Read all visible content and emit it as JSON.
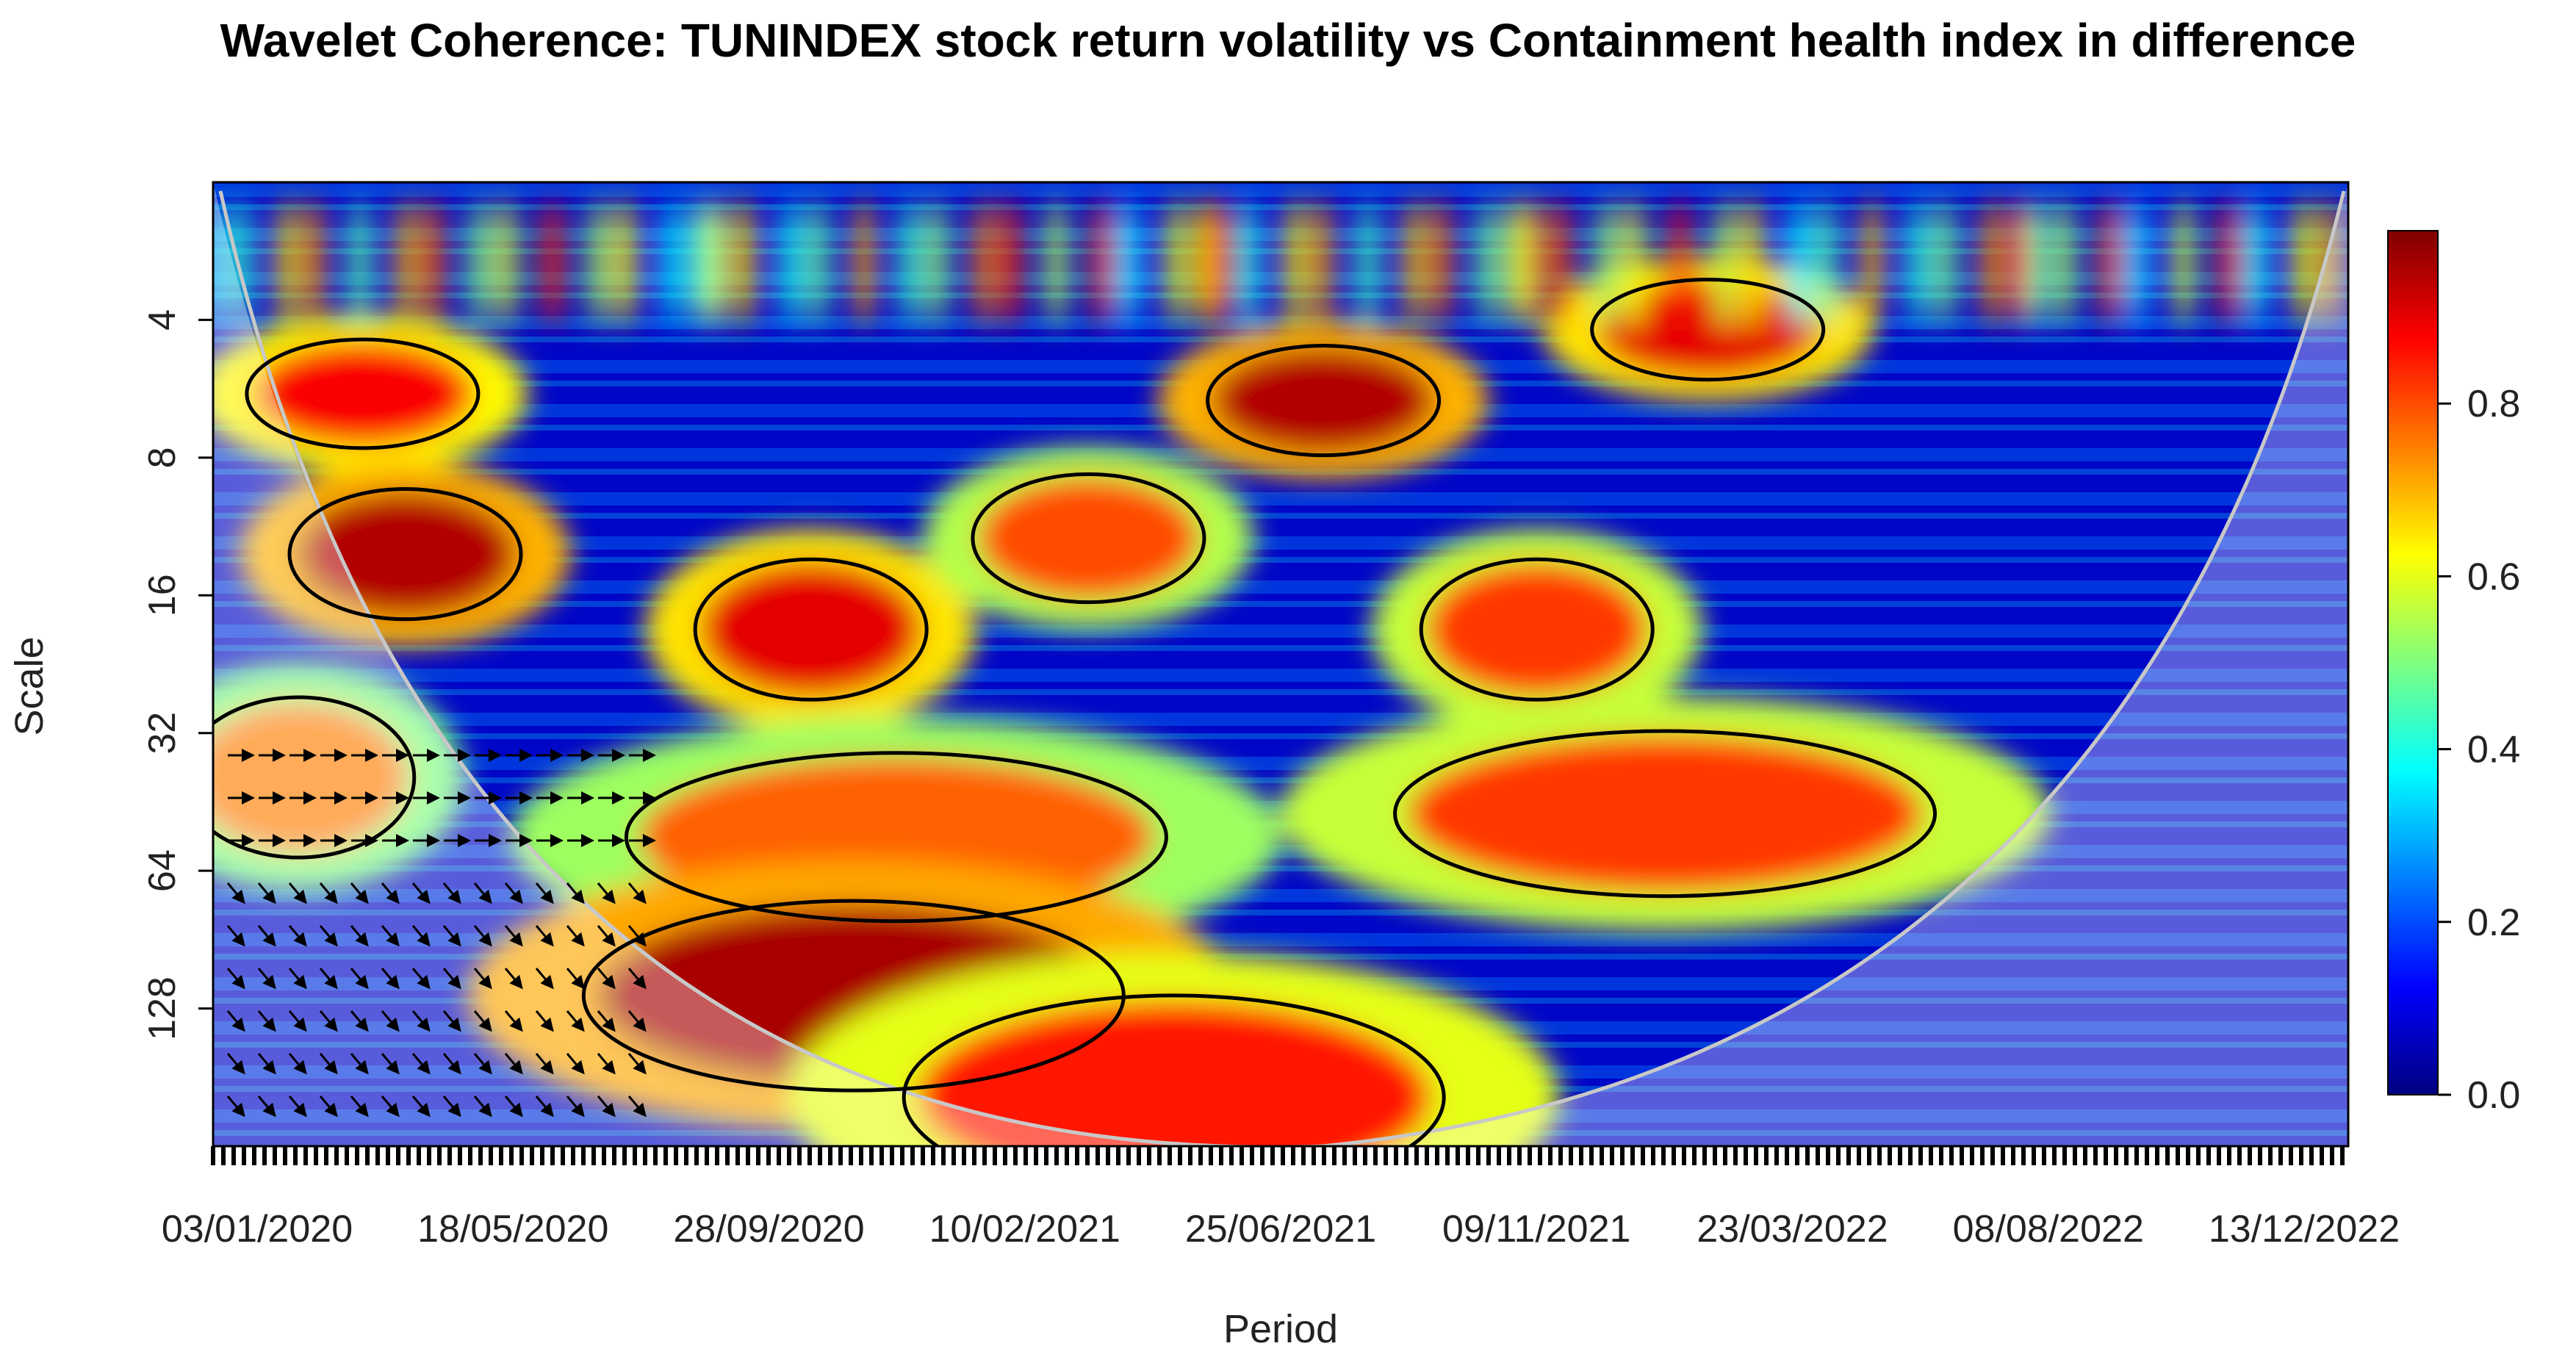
{
  "chart_data": {
    "type": "heatmap",
    "title": "Wavelet Coherence: TUNINDEX stock return volatility vs Containment health index in difference",
    "xlabel": "Period",
    "ylabel": "Scale",
    "x_tick_labels": [
      "03/01/2020",
      "18/05/2020",
      "28/09/2020",
      "10/02/2021",
      "25/06/2021",
      "09/11/2021",
      "23/03/2022",
      "08/08/2022",
      "13/12/2022"
    ],
    "y_tick_labels": [
      "4",
      "8",
      "16",
      "32",
      "64",
      "128"
    ],
    "y_scale": "log2",
    "y_range": [
      2,
      256
    ],
    "colorbar": {
      "ticks": [
        "0.0",
        "0.2",
        "0.4",
        "0.6",
        "0.8"
      ],
      "range": [
        0,
        1
      ],
      "palette": [
        "#00007f",
        "#0000ff",
        "#007fff",
        "#00ffff",
        "#7fff7f",
        "#ffff00",
        "#ff7f00",
        "#ff0000",
        "#7f0000"
      ]
    },
    "regions": [
      {
        "x": 0.07,
        "scale": 5.8,
        "coherence": 0.88
      },
      {
        "x": 0.09,
        "scale": 13,
        "coherence": 0.95
      },
      {
        "x": 0.04,
        "scale": 40,
        "coherence": 0.75
      },
      {
        "x": 0.28,
        "scale": 19,
        "coherence": 0.9
      },
      {
        "x": 0.41,
        "scale": 12,
        "coherence": 0.8
      },
      {
        "x": 0.52,
        "scale": 6,
        "coherence": 0.95
      },
      {
        "x": 0.62,
        "scale": 19,
        "coherence": 0.82
      },
      {
        "x": 0.32,
        "scale": 54,
        "coherence": 0.78
      },
      {
        "x": 0.68,
        "scale": 48,
        "coherence": 0.82
      },
      {
        "x": 0.3,
        "scale": 120,
        "coherence": 0.96
      },
      {
        "x": 0.45,
        "scale": 200,
        "coherence": 0.85
      },
      {
        "x": 0.7,
        "scale": 4.2,
        "coherence": 0.9
      }
    ]
  }
}
